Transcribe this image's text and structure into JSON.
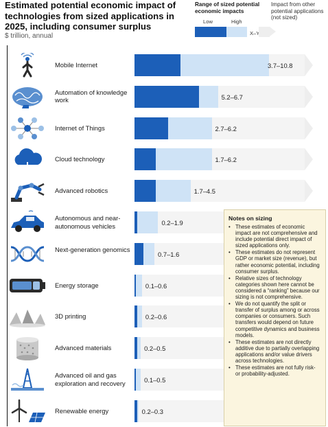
{
  "title": "Estimated potential economic impact of technologies from sized applications in 2025, including consumer surplus",
  "subtitle": "$ trillion, annual",
  "legend": {
    "range_heading": "Range of sized potential economic impacts",
    "low_label": "Low",
    "high_label": "High",
    "range_label": "X–Y",
    "other_heading": "Impact from other potential applications (not sized)",
    "colors": {
      "low": "#1c5fb8",
      "high": "#cfe3f6",
      "other": "#eeeeee"
    }
  },
  "chart_data": {
    "type": "bar",
    "orientation": "horizontal",
    "stacked_range": true,
    "categories": [
      "Mobile Internet",
      "Automation of knowledge work",
      "Internet of Things",
      "Cloud technology",
      "Advanced robotics",
      "Autonomous and near-autonomous vehicles",
      "Next-generation genomics",
      "Energy storage",
      "3D printing",
      "Advanced materials",
      "Advanced oil and gas exploration and recovery",
      "Renewable energy"
    ],
    "labels": [
      "Mobile Internet",
      "Automation of knowledge work",
      "Internet of Things",
      "Cloud technology",
      "Advanced robotics",
      "Autonomous and near-autonomous vehicles",
      "Next-generation genomics",
      "Energy storage",
      "3D printing",
      "Advanced materials",
      "Advanced oil and gas exploration and recovery",
      "Renewable energy"
    ],
    "series": [
      {
        "name": "Low",
        "values": [
          3.7,
          5.2,
          2.7,
          1.7,
          1.7,
          0.2,
          0.7,
          0.1,
          0.2,
          0.2,
          0.1,
          0.2
        ]
      },
      {
        "name": "High",
        "values": [
          10.8,
          6.7,
          6.2,
          6.2,
          4.5,
          1.9,
          1.6,
          0.6,
          0.6,
          0.5,
          0.5,
          0.3
        ]
      }
    ],
    "value_labels": [
      "3.7–10.8",
      "5.2–6.7",
      "2.7–6.2",
      "1.7–6.2",
      "1.7–4.5",
      "0.2–1.9",
      "0.7–1.6",
      "0.1–0.6",
      "0.2–0.6",
      "0.2–0.5",
      "0.1–0.5",
      "0.2–0.3"
    ],
    "xlim": [
      0,
      10.8
    ],
    "title": "Estimated potential economic impact of technologies from sized applications in 2025, including consumer surplus",
    "xlabel": "",
    "ylabel": "$ trillion, annual"
  },
  "notes": {
    "title": "Notes on sizing",
    "items": [
      "These estimates of economic impact are not comprehensive and include potential direct impact of sized applications only.",
      "These estimates do not represent GDP or market size (revenue), but rather economic potential, including consumer surplus.",
      "Relative sizes of technology categories shown here cannot be considered a “ranking” because our sizing is not comprehensive.",
      "We do not quantify the split or transfer of surplus among or across companies or consumers. Such transfers would depend on future competitive dynamics and business models.",
      "These estimates are not directly additive due to partially overlapping applications and/or value drivers across technologies.",
      "These estimates are not fully risk- or probability-adjusted."
    ]
  },
  "icons": [
    "signal-person-icon",
    "brain-icon",
    "network-icon",
    "cloud-icon",
    "robot-arm-icon",
    "car-icon",
    "dna-icon",
    "battery-icon",
    "printed-shapes-icon",
    "material-cylinder-icon",
    "oil-rig-icon",
    "wind-solar-icon"
  ]
}
